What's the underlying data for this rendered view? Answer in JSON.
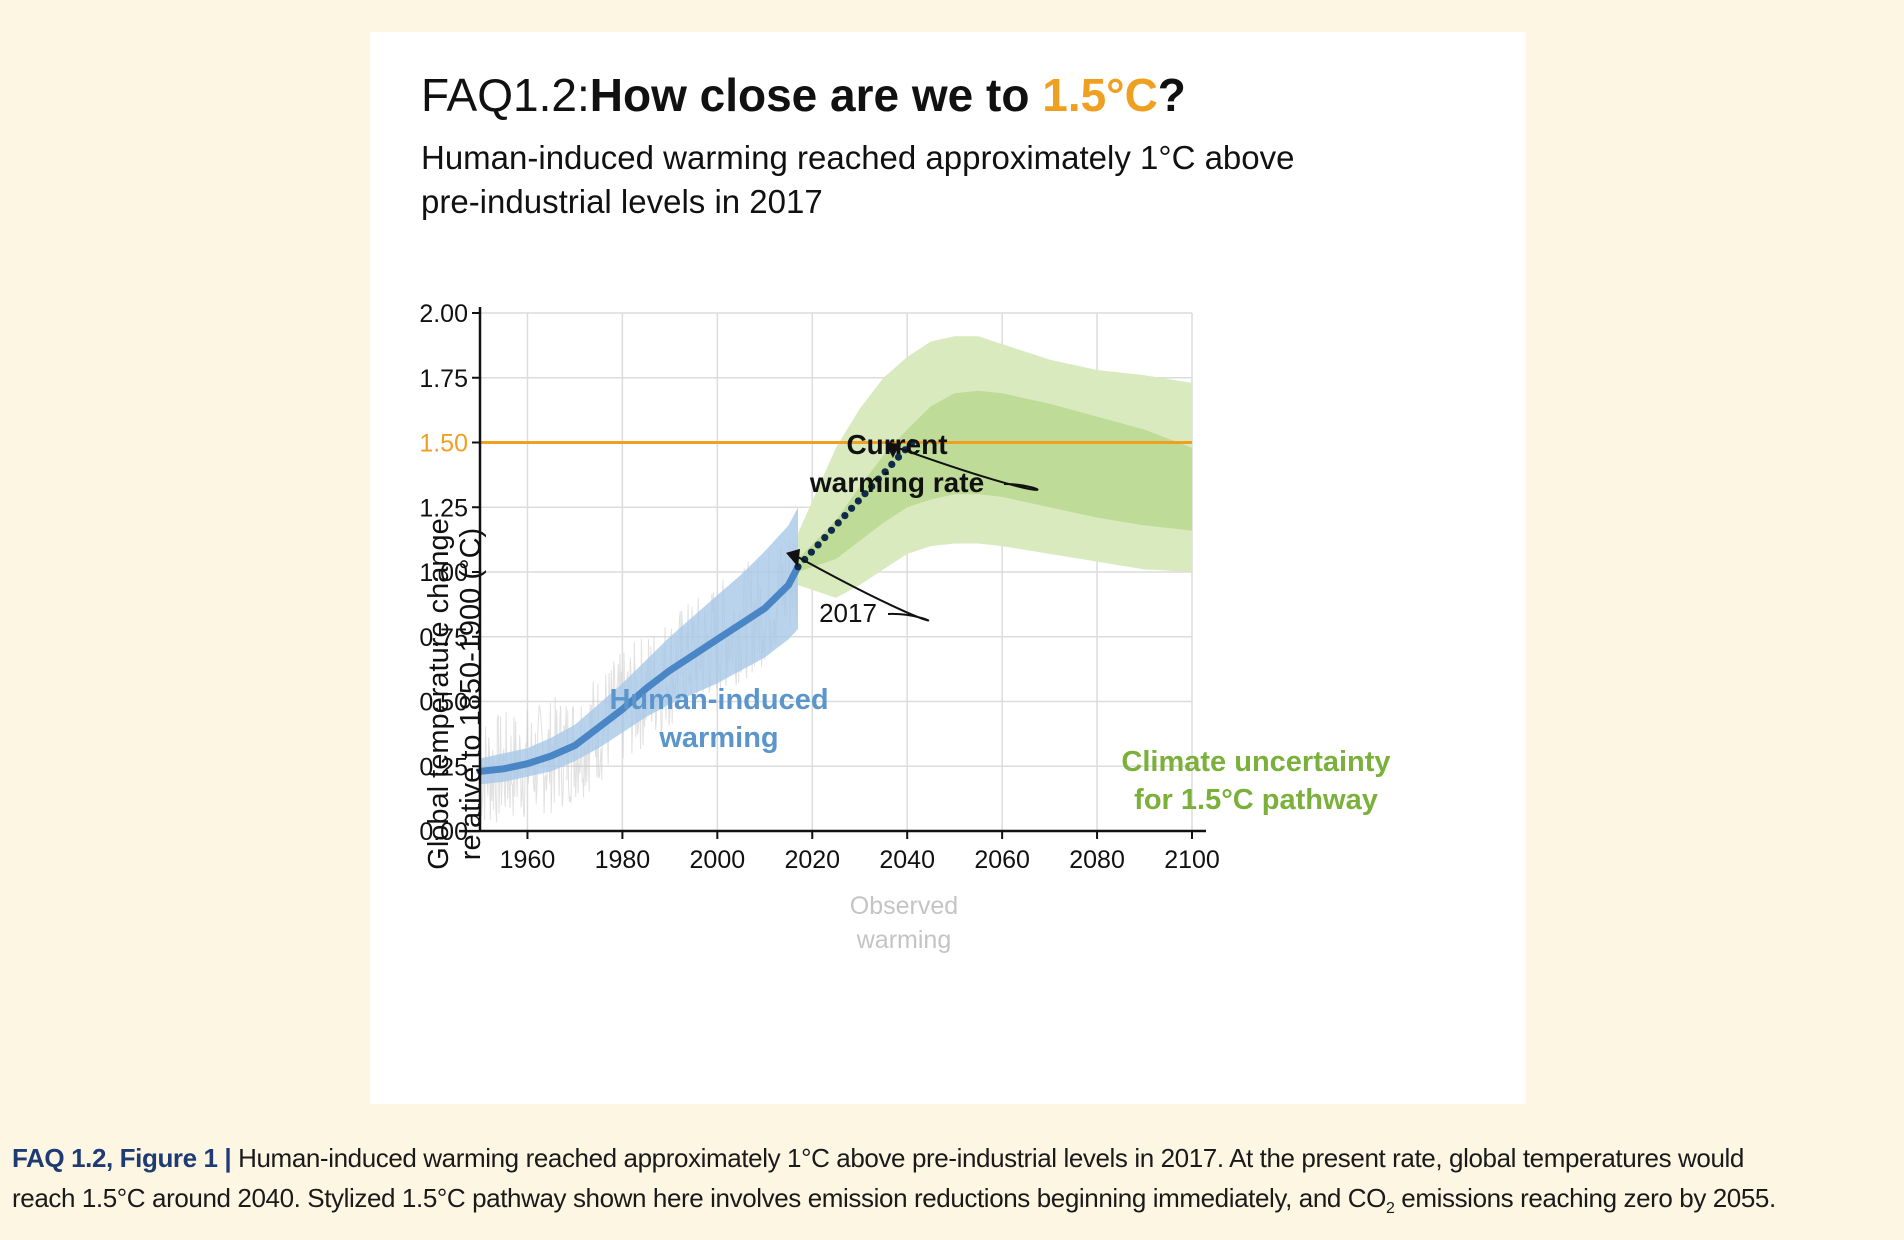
{
  "title": {
    "prefix": "FAQ1.2:",
    "main": "How close are we to ",
    "highlight": "1.5°C",
    "suffix": "?",
    "highlight_color": "#f0a020"
  },
  "subtitle": {
    "line1": "Human-induced warming reached approximately 1°C above",
    "line2": "pre-industrial levels in 2017"
  },
  "caption": {
    "label": "FAQ 1.2, Figure 1 |",
    "line1": " Human-induced warming reached approximately 1°C above pre-industrial levels in 2017. At the present rate, global temperatures would",
    "line2a": "reach 1.5°C around 2040. Stylized 1.5°C pathway shown here involves emission reductions beginning immediately, and CO",
    "line2sub": "2",
    "line2b": " emissions reaching zero by 2055."
  },
  "chart_data": {
    "type": "line",
    "ylabel_line1": "Global temperature change",
    "ylabel_line2": "relative to 1850-1900 (°C)",
    "xlim": [
      1950,
      2100
    ],
    "ylim": [
      0,
      2
    ],
    "xticks": [
      "1960",
      "1980",
      "2000",
      "2020",
      "2040",
      "2060",
      "2080",
      "2100"
    ],
    "xtick_values": [
      1960,
      1980,
      2000,
      2020,
      2040,
      2060,
      2080,
      2100
    ],
    "yticks": [
      "0.00",
      "0.25",
      "0.50",
      "0.75",
      "1.00",
      "1.25",
      "1.50",
      "1.75",
      "2.00"
    ],
    "ytick_values": [
      0,
      0.25,
      0.5,
      0.75,
      1.0,
      1.25,
      1.5,
      1.75,
      2.0
    ],
    "grid": true,
    "threshold": {
      "value": 1.5,
      "label": "1.50",
      "color": "#f0a020"
    },
    "human_induced": {
      "label_line1": "Human-induced",
      "label_line2": "warming",
      "color": "#4a86c5",
      "x": [
        1950,
        1955,
        1960,
        1965,
        1970,
        1975,
        1980,
        1985,
        1990,
        1995,
        2000,
        2005,
        2010,
        2015,
        2017
      ],
      "y": [
        0.23,
        0.24,
        0.26,
        0.29,
        0.33,
        0.4,
        0.47,
        0.55,
        0.62,
        0.68,
        0.74,
        0.8,
        0.86,
        0.95,
        1.02
      ],
      "band_low": [
        0.18,
        0.19,
        0.21,
        0.23,
        0.27,
        0.32,
        0.38,
        0.44,
        0.49,
        0.53,
        0.57,
        0.62,
        0.67,
        0.74,
        0.78
      ],
      "band_high": [
        0.28,
        0.3,
        0.32,
        0.36,
        0.41,
        0.49,
        0.57,
        0.66,
        0.75,
        0.83,
        0.91,
        0.99,
        1.08,
        1.18,
        1.25
      ]
    },
    "current_rate": {
      "label_line1": "Current",
      "label_line2": "warming rate",
      "x": [
        2017,
        2041
      ],
      "y": [
        1.02,
        1.5
      ],
      "color": "#0f2a4a"
    },
    "annotation_2017": "2017",
    "observed": {
      "label_line1": "Observed",
      "label_line2": "warming",
      "color": "#c8c8c8"
    },
    "pathway_uncertainty": {
      "label_line1": "Climate uncertainty",
      "label_line2": "for 1.5°C pathway",
      "color": "#7bb03a",
      "x": [
        2017,
        2025,
        2030,
        2035,
        2040,
        2045,
        2050,
        2055,
        2060,
        2070,
        2080,
        2090,
        2100
      ],
      "outer_low": [
        0.95,
        0.9,
        0.95,
        1.01,
        1.07,
        1.1,
        1.11,
        1.11,
        1.1,
        1.07,
        1.04,
        1.01,
        1.0
      ],
      "inner_low": [
        1.0,
        1.05,
        1.12,
        1.19,
        1.25,
        1.28,
        1.3,
        1.3,
        1.29,
        1.25,
        1.21,
        1.18,
        1.16
      ],
      "inner_high": [
        1.05,
        1.2,
        1.33,
        1.45,
        1.55,
        1.64,
        1.69,
        1.7,
        1.69,
        1.65,
        1.6,
        1.55,
        1.48
      ],
      "outer_high": [
        1.15,
        1.48,
        1.63,
        1.75,
        1.83,
        1.89,
        1.91,
        1.91,
        1.88,
        1.82,
        1.78,
        1.76,
        1.73
      ]
    }
  }
}
